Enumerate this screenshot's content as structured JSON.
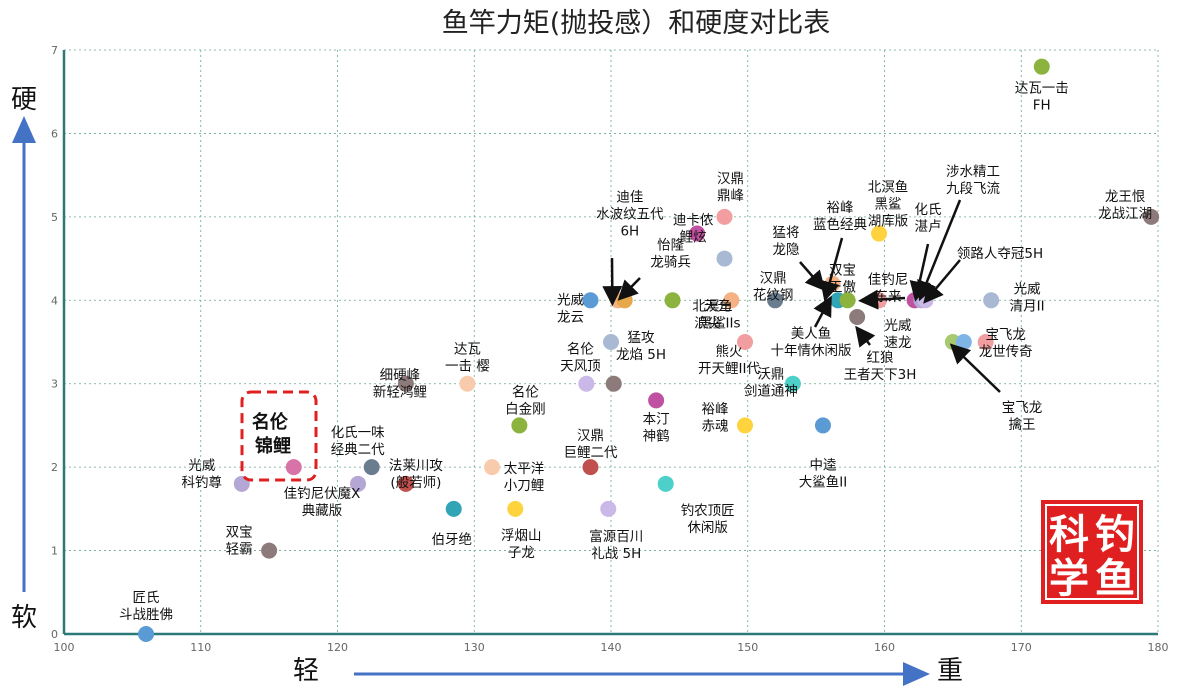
{
  "chart_data": {
    "type": "scatter",
    "title": "鱼竿力矩(抛投感）和硬度对比表",
    "x_axis": {
      "min": 100,
      "max": 180,
      "ticks": [
        100,
        110,
        120,
        130,
        140,
        150,
        160,
        170,
        180
      ],
      "label_left": "轻",
      "label_right": "重"
    },
    "y_axis": {
      "min": 0,
      "max": 7,
      "ticks": [
        0,
        1,
        2,
        3,
        4,
        5,
        6,
        7
      ],
      "label_top": "硬",
      "label_bottom": "软"
    },
    "grid": true,
    "points": [
      {
        "x": 106,
        "y": 0,
        "color": "#5b9bd5",
        "label": [
          "匠氏",
          "斗战胜佛"
        ]
      },
      {
        "x": 113,
        "y": 1.8,
        "color": "#b4a7d6",
        "label": [
          "光威",
          "科钓尊"
        ]
      },
      {
        "x": 115,
        "y": 1,
        "color": "#8d7b7b",
        "label": [
          "双宝",
          "轻霸"
        ]
      },
      {
        "x": 116.8,
        "y": 2,
        "color": "#d873a8",
        "label": []
      },
      {
        "x": 121.5,
        "y": 1.8,
        "color": "#b4a7d6",
        "label": [
          "佳钓尼伏魔X",
          "典藏版"
        ]
      },
      {
        "x": 122.5,
        "y": 2,
        "color": "#6a7d8e",
        "label": [
          "化氏一味",
          "经典二代"
        ]
      },
      {
        "x": 125,
        "y": 1.8,
        "color": "#c0504d",
        "label": [
          "法莱川攻",
          "(般若师)"
        ]
      },
      {
        "x": 125,
        "y": 3,
        "color": "#8d7b7b",
        "label": [
          "细硬峰",
          "新轻鸿鲤"
        ]
      },
      {
        "x": 128.5,
        "y": 1.5,
        "color": "#31a5b5",
        "label": [
          "伯牙绝"
        ]
      },
      {
        "x": 129.5,
        "y": 3,
        "color": "#f8cbad",
        "label": [
          "达瓦",
          "一击 樱"
        ]
      },
      {
        "x": 131.3,
        "y": 2,
        "color": "#f8cbad",
        "label": [
          "太平洋",
          "小刀鲤"
        ]
      },
      {
        "x": 133,
        "y": 1.5,
        "color": "#ffd33d",
        "label": [
          "浮烟山",
          "子龙"
        ]
      },
      {
        "x": 133.3,
        "y": 2.5,
        "color": "#8bb33e",
        "label": [
          "名伦",
          "白金刚"
        ]
      },
      {
        "x": 138.2,
        "y": 3,
        "color": "#c9b8e8",
        "label": [
          "名伦",
          "天风顶"
        ]
      },
      {
        "x": 138.5,
        "y": 2,
        "color": "#c0504d",
        "label": [
          "汉鼎",
          "巨鲤二代"
        ]
      },
      {
        "x": 138.5,
        "y": 4,
        "color": "#5b9bd5",
        "label": [
          "光威",
          "龙云"
        ]
      },
      {
        "x": 139.8,
        "y": 1.5,
        "color": "#c9b8e8",
        "label": [
          "富源百川",
          "礼战 5H"
        ]
      },
      {
        "x": 140,
        "y": 3.5,
        "color": "#a9b9d4",
        "label": [
          "猛攻",
          "龙焰 5H"
        ]
      },
      {
        "x": 140.2,
        "y": 3,
        "color": "#8d7b7b",
        "label": []
      },
      {
        "x": 140.5,
        "y": 4,
        "color": "#f4b183",
        "label": [
          "迪佳",
          "水波纹五代",
          "6H"
        ]
      },
      {
        "x": 141,
        "y": 4,
        "color": "#e6a84a",
        "label": [
          "怡隆",
          "龙骑兵"
        ]
      },
      {
        "x": 143.3,
        "y": 2.8,
        "color": "#c050a0",
        "label": [
          "本汀",
          "神鹤"
        ]
      },
      {
        "x": 144,
        "y": 1.8,
        "color": "#4dd0c9",
        "label": [
          "钓农顶匠",
          "休闲版"
        ]
      },
      {
        "x": 144.5,
        "y": 4,
        "color": "#8bb33e",
        "label": [
          "北溟鱼",
          "黑鲨"
        ]
      },
      {
        "x": 146.3,
        "y": 4.8,
        "color": "#c050a0",
        "label": [
          "迪卡侬",
          "鲤炫"
        ]
      },
      {
        "x": 148.3,
        "y": 5,
        "color": "#f29ea0",
        "label": [
          "汉鼎",
          "鼎峰"
        ]
      },
      {
        "x": 148.3,
        "y": 4.5,
        "color": "#a9b9d4",
        "label": []
      },
      {
        "x": 148.8,
        "y": 4,
        "color": "#f4b183",
        "label": [
          "天元",
          "浪尖 IIs"
        ]
      },
      {
        "x": 149.8,
        "y": 3.5,
        "color": "#f29ea0",
        "label": [
          "熊火",
          "开天鲤II代"
        ]
      },
      {
        "x": 149.8,
        "y": 2.5,
        "color": "#ffd33d",
        "label": [
          "裕峰",
          "赤魂"
        ]
      },
      {
        "x": 152,
        "y": 4,
        "color": "#6a7d8e",
        "label": [
          "汉鼎",
          "花纹钢"
        ]
      },
      {
        "x": 153.3,
        "y": 3,
        "color": "#4dd0c9",
        "label": [
          "沃鼎",
          "剑道通神"
        ]
      },
      {
        "x": 155.5,
        "y": 2.5,
        "color": "#5b9bd5",
        "label": [
          "中逵",
          "大鲨鱼II"
        ]
      },
      {
        "x": 156.2,
        "y": 4.2,
        "color": "#f4b183",
        "label": [
          "双宝",
          "王傲"
        ]
      },
      {
        "x": 156.6,
        "y": 4,
        "color": "#31a5b5",
        "label": []
      },
      {
        "x": 157.3,
        "y": 4,
        "color": "#8bb33e",
        "label": []
      },
      {
        "x": 158,
        "y": 3.8,
        "color": "#8d7b7b",
        "label": []
      },
      {
        "x": 159.6,
        "y": 4.8,
        "color": "#ffd33d",
        "label": [
          "北溟鱼",
          "黑鲨",
          "湖库版"
        ]
      },
      {
        "x": 159.6,
        "y": 4,
        "color": "#f29ea0",
        "label": []
      },
      {
        "x": 162.2,
        "y": 4,
        "color": "#c050a0",
        "label": []
      },
      {
        "x": 162.7,
        "y": 4,
        "color": "#b4a7d6",
        "label": []
      },
      {
        "x": 163,
        "y": 4,
        "color": "#c9b8e8",
        "label": []
      },
      {
        "x": 165,
        "y": 3.5,
        "color": "#a9c971",
        "label": []
      },
      {
        "x": 165.8,
        "y": 3.5,
        "color": "#7fb5e6",
        "label": []
      },
      {
        "x": 167.4,
        "y": 3.5,
        "color": "#f29ea0",
        "label": [
          "宝飞龙",
          "龙世传奇"
        ]
      },
      {
        "x": 167.8,
        "y": 4,
        "color": "#a9b9d4",
        "label": [
          "光威",
          "清月II"
        ]
      },
      {
        "x": 171.5,
        "y": 6.8,
        "color": "#8bb33e",
        "label": [
          "达瓦一击",
          "FH"
        ]
      },
      {
        "x": 179.5,
        "y": 5,
        "color": "#8d7b7b",
        "label": [
          "龙王恨",
          "龙战江湖"
        ]
      }
    ],
    "annotations": [
      {
        "text": [
          "裕峰",
          "蓝色经典"
        ]
      },
      {
        "text": [
          "猛将",
          "龙隐"
        ]
      },
      {
        "text": [
          "佳钓尼",
          "东来"
        ]
      },
      {
        "text": [
          "化氏",
          "湛卢"
        ]
      },
      {
        "text": [
          "涉水精工",
          "九段飞流"
        ]
      },
      {
        "text": [
          "领路人夺冠5H"
        ]
      },
      {
        "text": [
          "光威",
          "速龙"
        ]
      },
      {
        "text": [
          "美人鱼",
          "十年情休闲版"
        ]
      },
      {
        "text": [
          "红狼",
          "王者天下3H"
        ]
      },
      {
        "text": [
          "宝飞龙",
          "擒王"
        ]
      }
    ],
    "highlight": {
      "x": 116.8,
      "y": 2,
      "text": [
        "名伦",
        "锦鲤"
      ]
    }
  },
  "seal": {
    "chars": [
      "科",
      "钓",
      "学",
      "鱼"
    ],
    "color": "#e02020"
  }
}
